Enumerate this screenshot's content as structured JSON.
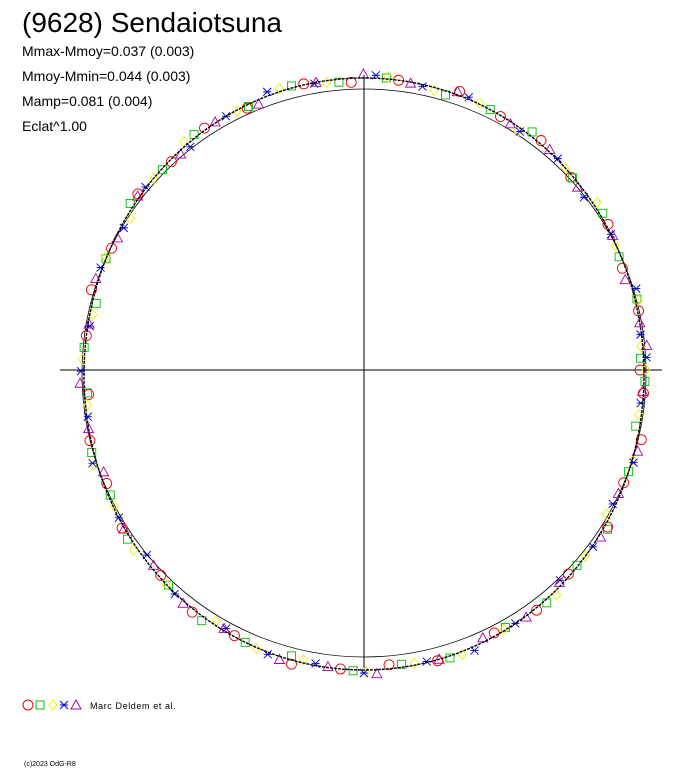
{
  "header": {
    "title": "(9628) Sendaiotsuna",
    "stats": [
      "Mmax-Mmoy=0.037 (0.003)",
      "Mmoy-Mmin=0.044 (0.003)",
      "Mamp=0.081 (0.004)",
      "Eclat^1.00"
    ]
  },
  "legend": {
    "label": "Marc Deldem et al."
  },
  "footer": {
    "copyright": "(c)2023 OdG-R8"
  }
}
